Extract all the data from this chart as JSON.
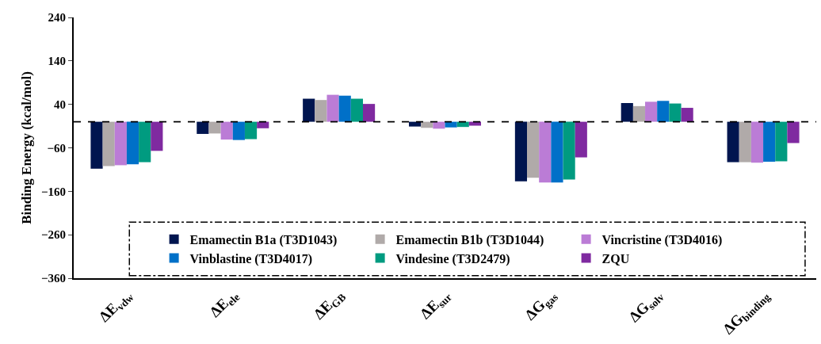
{
  "chart_data": {
    "type": "bar",
    "ylabel": "Binding Energy (kcal/mol)",
    "categories": [
      "ΔE$_{vdw}$",
      "ΔE$_{ele}$",
      "ΔE$_{GB}$",
      "ΔE$_{sur}$",
      "ΔG$_{gas}$",
      "ΔG$_{solv}$",
      "ΔG$_{binding}$"
    ],
    "series": [
      {
        "name": "Emamectin B1a (T3D1043)",
        "color": "#00154f",
        "values": [
          -108,
          -28,
          53,
          -11,
          -137,
          43,
          -93
        ]
      },
      {
        "name": "Emamectin B1b (T3D1044)",
        "color": "#b0aaa9",
        "values": [
          -102,
          -27,
          50,
          -14,
          -129,
          36,
          -93
        ]
      },
      {
        "name": "Vincristine (T3D4016)",
        "color": "#bb7cd6",
        "values": [
          -100,
          -41,
          62,
          -16,
          -140,
          46,
          -94
        ]
      },
      {
        "name": "Vinblastine (T3D4017)",
        "color": "#0070c8",
        "values": [
          -98,
          -42,
          60,
          -13,
          -140,
          48,
          -92
        ]
      },
      {
        "name": "Vindesine (T3D2479)",
        "color": "#009b80",
        "values": [
          -93,
          -40,
          53,
          -12,
          -133,
          42,
          -91
        ]
      },
      {
        "name": "ZQU",
        "color": "#7f2aa0",
        "values": [
          -67,
          -15,
          41,
          -9,
          -82,
          32,
          -49
        ]
      }
    ],
    "ylim": [
      -360,
      240
    ],
    "yticks": [
      -360,
      -260,
      -160,
      -60,
      40,
      140,
      240
    ],
    "ref_lines": [
      {
        "axis": "y",
        "value": 0,
        "color": "#000000",
        "line_style": "dashed"
      }
    ],
    "grid": false,
    "legend": "bottom"
  }
}
